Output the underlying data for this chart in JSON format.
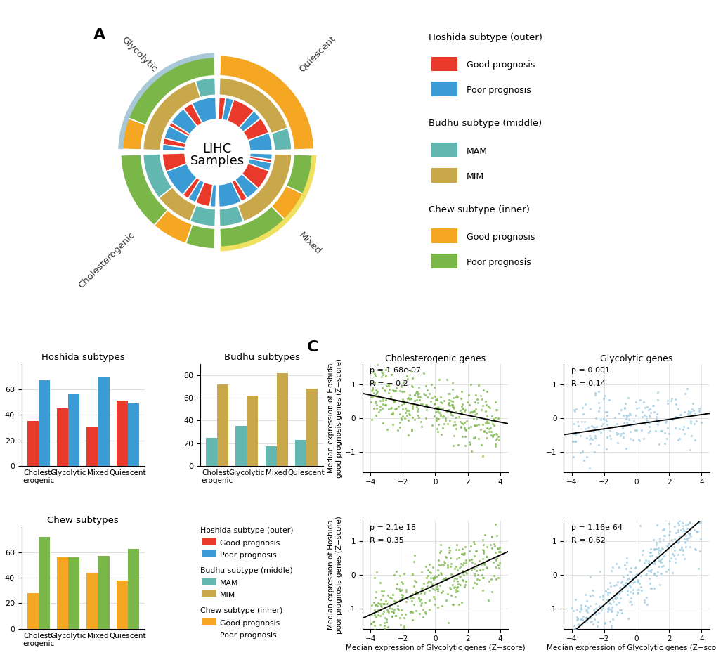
{
  "colors": {
    "hoshida_good": "#e8392a",
    "hoshida_poor": "#3b9bd4",
    "budhu_MAM": "#62b8b0",
    "budhu_MIM": "#c9a84c",
    "chew_good": "#f5a623",
    "chew_poor": "#7ab648",
    "light_blue_arc": "#a8c8d8",
    "mixed_outer_yellow": "#f0e060"
  },
  "panel_B": {
    "hoshida": {
      "title": "Hoshida subtypes",
      "categories": [
        "Cholest-\nerogenic",
        "Glycolytic",
        "Mixed",
        "Quiescent"
      ],
      "good": [
        35,
        45,
        30,
        51
      ],
      "poor": [
        67,
        57,
        70,
        49
      ],
      "ylim": [
        0,
        80
      ],
      "yticks": [
        0,
        20,
        40,
        60
      ]
    },
    "budhu": {
      "title": "Budhu subtypes",
      "categories": [
        "Cholest-\nerogenic",
        "Glycolytic",
        "Mixed",
        "Quiescent"
      ],
      "MAM": [
        25,
        35,
        17,
        23
      ],
      "MIM": [
        72,
        62,
        82,
        68
      ],
      "ylim": [
        0,
        90
      ],
      "yticks": [
        0,
        20,
        40,
        60,
        80
      ]
    },
    "chew": {
      "title": "Chew subtypes",
      "categories": [
        "Cholest-\nerogenic",
        "Glycolytic",
        "Mixed",
        "Quiescent"
      ],
      "good": [
        28,
        56,
        44,
        38
      ],
      "poor": [
        72,
        56,
        57,
        63
      ],
      "ylim": [
        0,
        80
      ],
      "yticks": [
        0,
        20,
        40,
        60
      ]
    }
  },
  "panel_C": {
    "top_left": {
      "title": "Cholesterogenic genes",
      "p_text": "p = 1.68e-07",
      "r_text": "R = − 0.2",
      "dot_color": "#7ab648",
      "slope": -0.1,
      "intercept": 0.28,
      "n_pts": 350
    },
    "top_right": {
      "title": "Glycolytic genes",
      "p_text": "p = 0.001",
      "r_text": "R = 0.14",
      "dot_color": "#9ecae1",
      "slope": 0.07,
      "intercept": -0.18,
      "n_pts": 200
    },
    "bottom_left": {
      "p_text": "p = 2.1e-18",
      "r_text": "R = 0.35",
      "dot_color": "#7ab648",
      "slope": 0.22,
      "intercept": -0.3,
      "n_pts": 350
    },
    "bottom_right": {
      "p_text": "p = 1.16e-64",
      "r_text": "R = 0.62",
      "dot_color": "#9ecae1",
      "slope": 0.42,
      "intercept": -0.05,
      "n_pts": 350
    },
    "xlabel": "Median expression of Glycolytic genes (Z−score)",
    "ylabel_top": "Median expression of Hoshida\ngood prognosis genes (Z−score)",
    "ylabel_bottom": "Median expression of Hoshida\npoor prognosis genes (Z−score)"
  }
}
